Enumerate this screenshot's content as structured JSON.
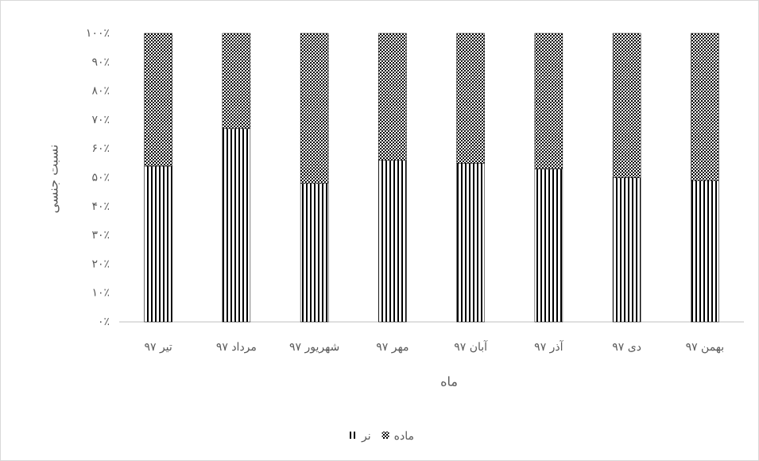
{
  "chart_data": {
    "type": "stacked-bar",
    "y_label": "نسبت جنسی",
    "x_label": "ماه",
    "categories": [
      "تیر ۹۷",
      "مرداد ۹۷",
      "شهریور ۹۷",
      "مهر ۹۷",
      "آبان ۹۷",
      "آذر ۹۷",
      "دی ۹۷",
      "بهمن ۹۷"
    ],
    "series": [
      {
        "name": "نر",
        "color": "#000000",
        "pattern": "vertical-stripes",
        "values": [
          54,
          67,
          48,
          56,
          55,
          53,
          50,
          49
        ]
      },
      {
        "name": "ماده",
        "color": "#000000",
        "pattern": "dots",
        "values": [
          46,
          33,
          52,
          44,
          45,
          47,
          50,
          51
        ]
      }
    ],
    "ylim": [
      0,
      100
    ],
    "yticks": [
      {
        "value": 0,
        "label": "۰٪"
      },
      {
        "value": 10,
        "label": "۱۰٪"
      },
      {
        "value": 20,
        "label": "۲۰٪"
      },
      {
        "value": 30,
        "label": "۳۰٪"
      },
      {
        "value": 40,
        "label": "۴۰٪"
      },
      {
        "value": 50,
        "label": "۵۰٪"
      },
      {
        "value": 60,
        "label": "۶۰٪"
      },
      {
        "value": 70,
        "label": "۷۰٪"
      },
      {
        "value": 80,
        "label": "۸۰٪"
      },
      {
        "value": 90,
        "label": "۹۰٪"
      },
      {
        "value": 100,
        "label": "۱۰۰٪"
      }
    ],
    "legend": "bottom"
  }
}
